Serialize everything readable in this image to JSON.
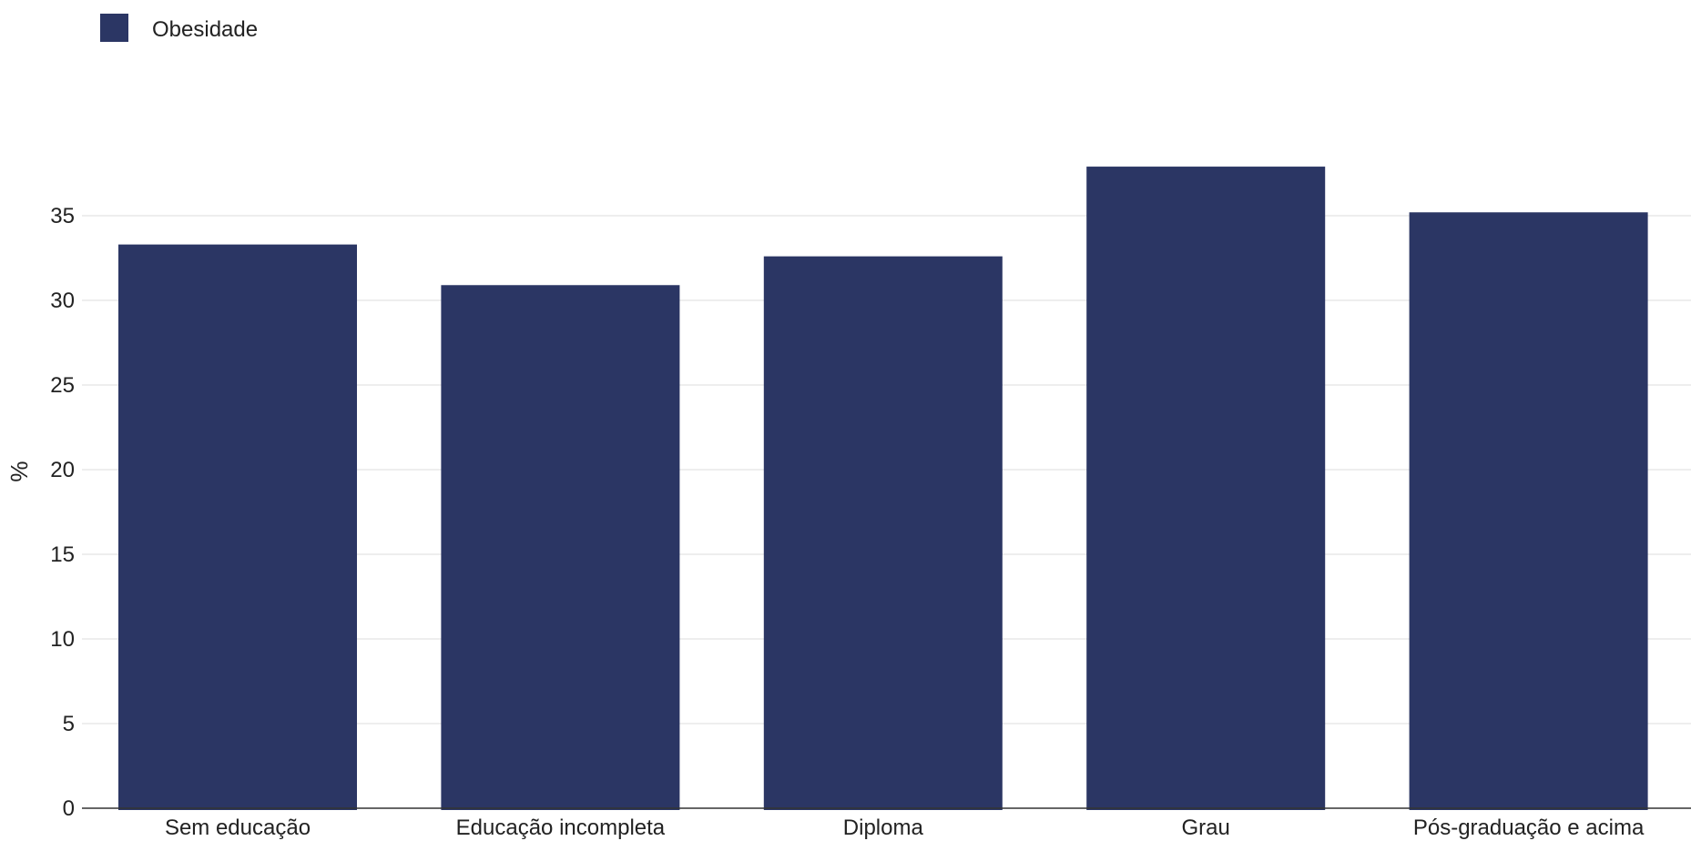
{
  "chart_data": {
    "type": "bar",
    "categories": [
      "Sem educação",
      "Educação incompleta",
      "Diploma",
      "Grau",
      "Pós-graduação e acima"
    ],
    "series": [
      {
        "name": "Obesidade",
        "values": [
          33.3,
          30.9,
          32.6,
          37.9,
          35.2
        ]
      }
    ],
    "xlabel": "",
    "ylabel": "%",
    "ylim": [
      0,
      38.5
    ],
    "yticks": [
      0,
      5,
      10,
      15,
      20,
      25,
      30,
      35
    ],
    "grid": true,
    "legend_position": "top-left",
    "colors": {
      "bar": "#2b3664",
      "grid": "#e8e8e8",
      "axis": "#333333"
    }
  }
}
